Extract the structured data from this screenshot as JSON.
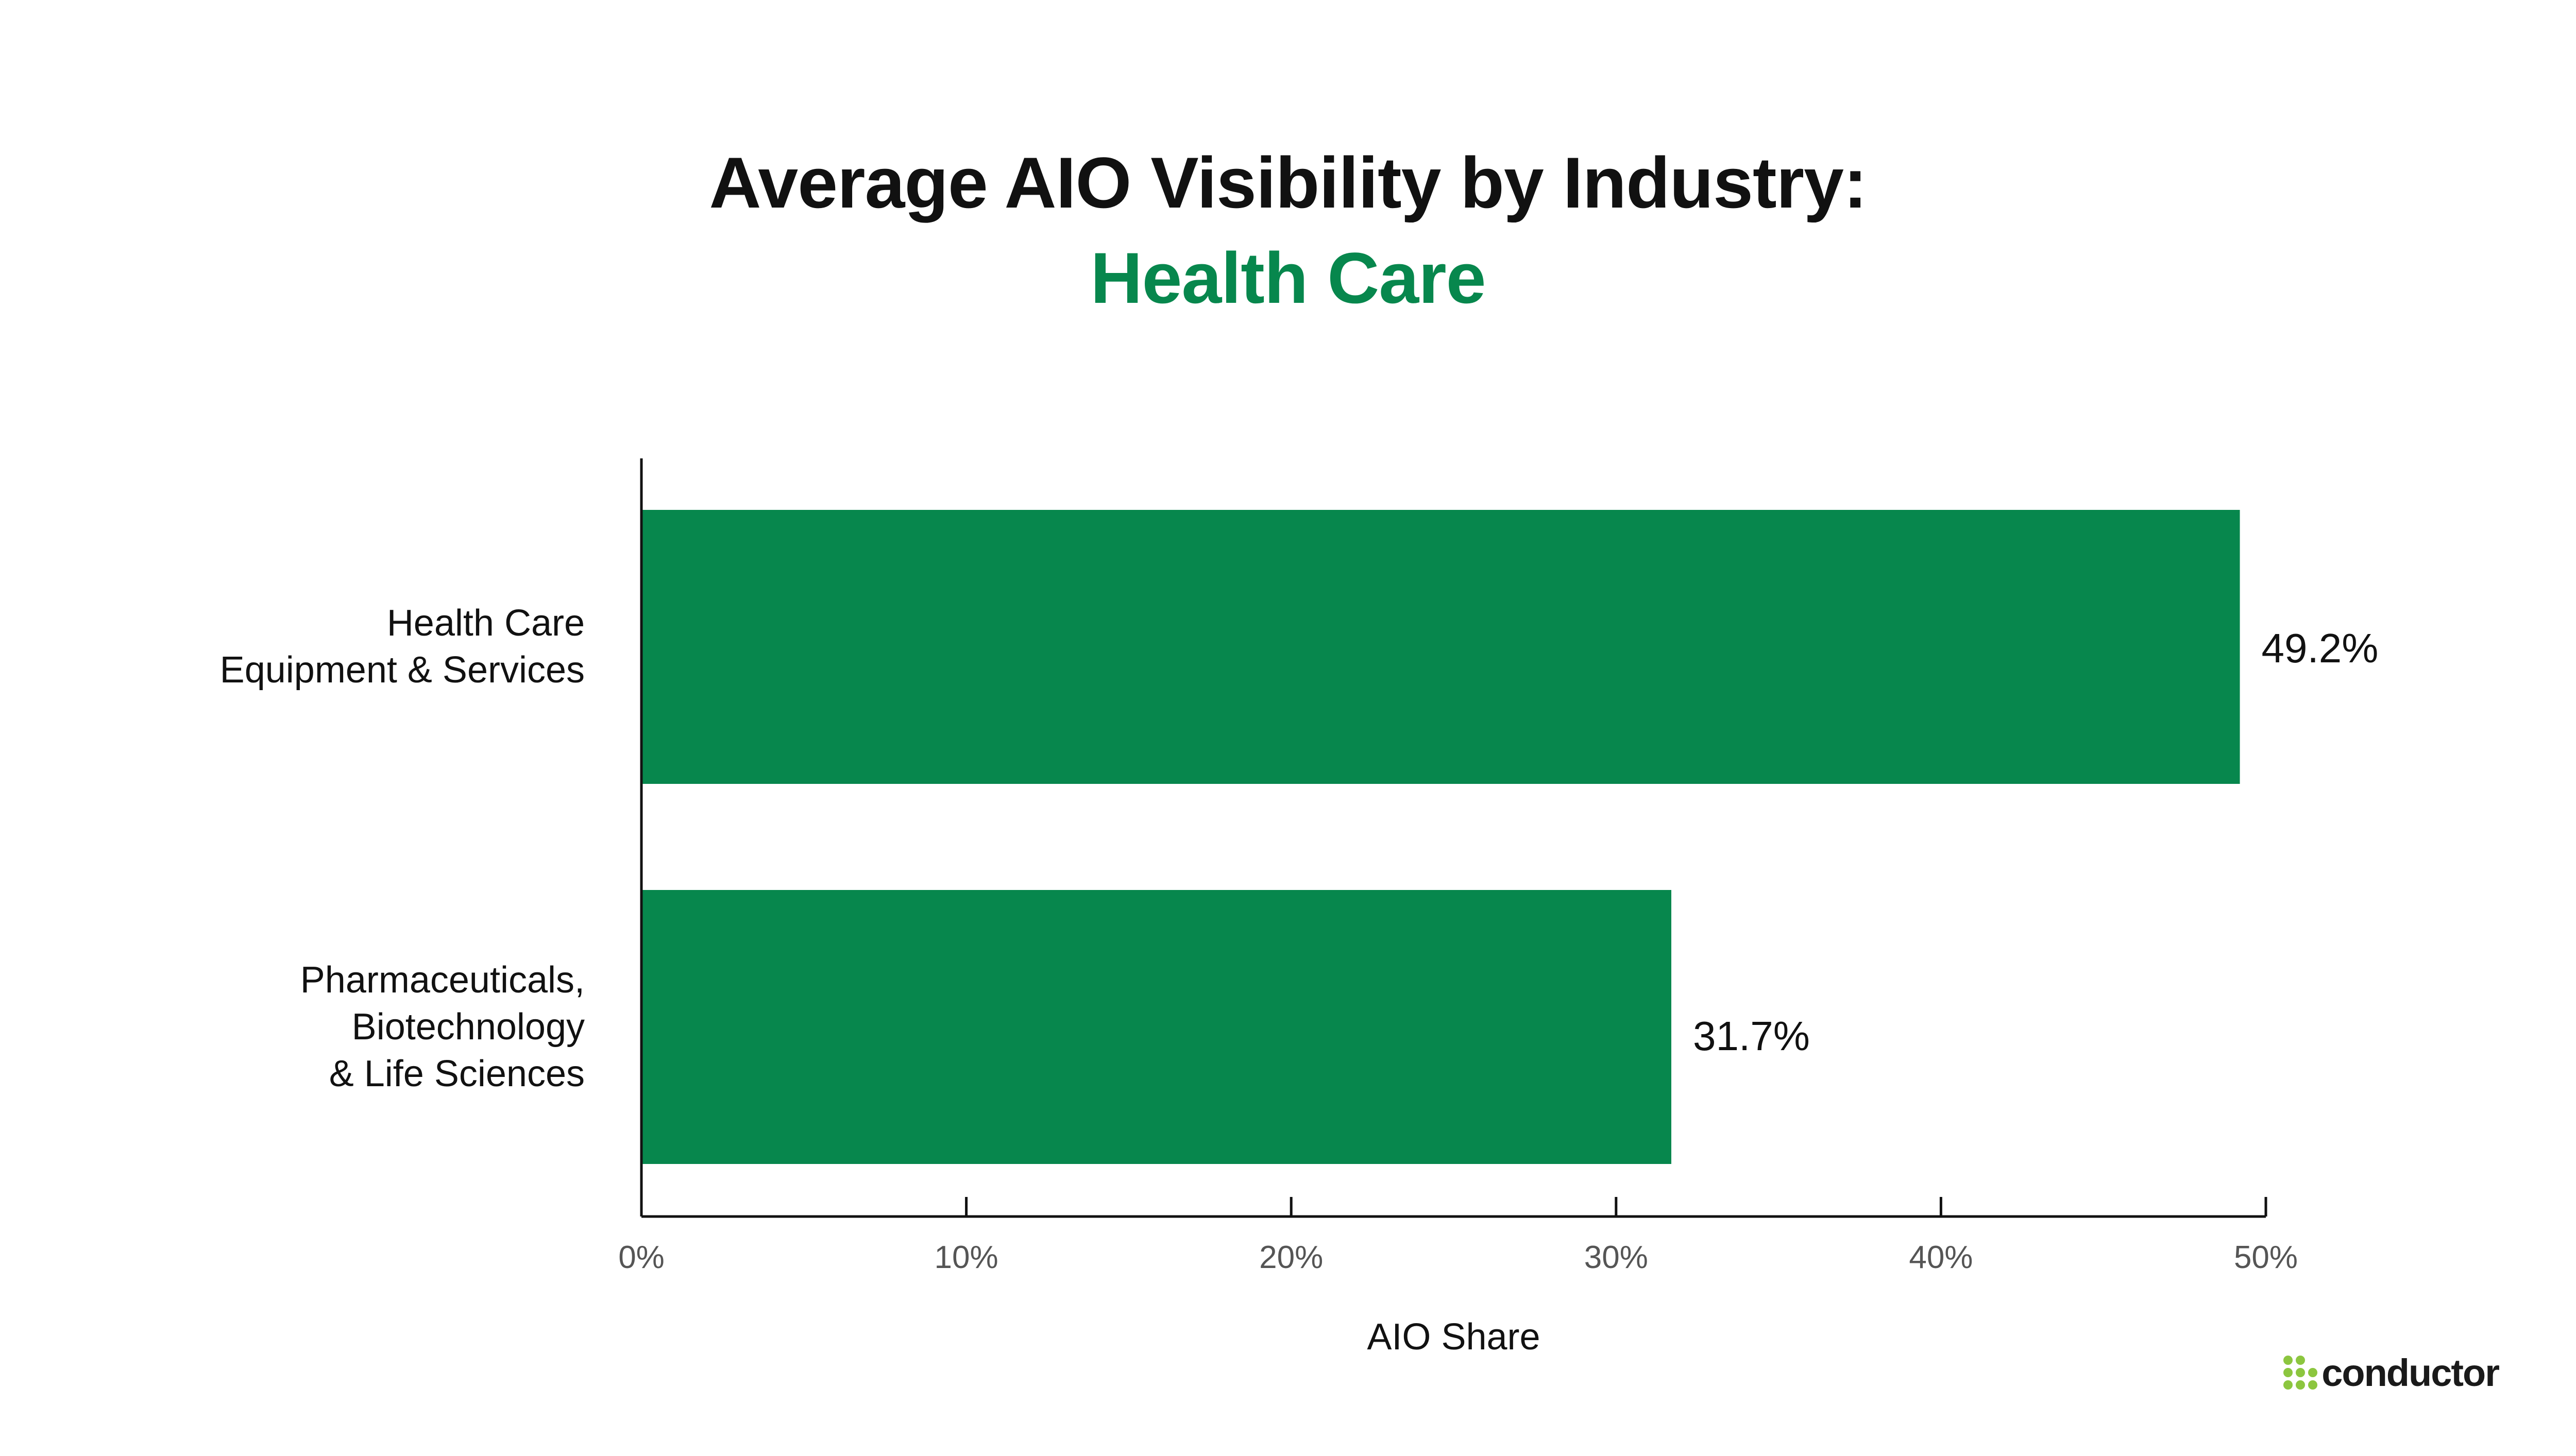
{
  "chart_data": {
    "type": "bar",
    "orientation": "horizontal",
    "title": "Average AIO Visibility by Industry:",
    "subtitle": "Health Care",
    "xlabel": "AIO Share",
    "ylabel": "",
    "xlim": [
      0,
      50
    ],
    "xticks": [
      {
        "value": 0,
        "label": "0%"
      },
      {
        "value": 10,
        "label": "10%"
      },
      {
        "value": 20,
        "label": "20%"
      },
      {
        "value": 30,
        "label": "30%"
      },
      {
        "value": 40,
        "label": "40%"
      },
      {
        "value": 50,
        "label": "50%"
      }
    ],
    "categories": [
      [
        "Health Care",
        "Equipment & Services"
      ],
      [
        "Pharmaceuticals,",
        "Biotechnology",
        "& Life Sciences"
      ]
    ],
    "values": [
      49.2,
      31.7
    ],
    "data_labels": [
      "49.2%",
      "31.7%"
    ],
    "grid": false,
    "legend": "none"
  },
  "colors": {
    "bar": "#07874d",
    "subtitle": "#07874d",
    "axis": "#111111",
    "tick_label": "#555555",
    "logo_mark": "#8cc63f"
  },
  "brand": {
    "logo_icon": "dots-cluster-icon",
    "name": "conductor"
  }
}
